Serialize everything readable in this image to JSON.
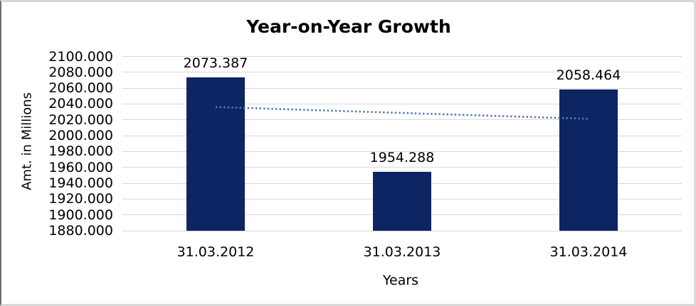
{
  "chart_data": {
    "type": "bar",
    "title": "Year-on-Year Growth",
    "xlabel": "Years",
    "ylabel": "Amt. in Millions",
    "categories": [
      "31.03.2012",
      "31.03.2013",
      "31.03.2014"
    ],
    "values": [
      2073.387,
      1954.288,
      2058.464
    ],
    "value_labels": [
      "2073.387",
      "1954.288",
      "2058.464"
    ],
    "ylim": [
      1880,
      2100
    ],
    "ytick_step": 20,
    "ytick_labels": [
      "2100.000",
      "2080.000",
      "2060.000",
      "2040.000",
      "2020.000",
      "2000.000",
      "1980.000",
      "1960.000",
      "1940.000",
      "1920.000",
      "1900.000",
      "1880.000"
    ],
    "grid": true,
    "legend": false,
    "bar_color": "#0d2563",
    "gridline_color": "#d9d9d9",
    "text_color": "#000000",
    "trendline": {
      "type": "linear",
      "style": "dotted",
      "color": "#4f79b6",
      "start_value": 2036.15,
      "end_value": 2021.23
    }
  }
}
